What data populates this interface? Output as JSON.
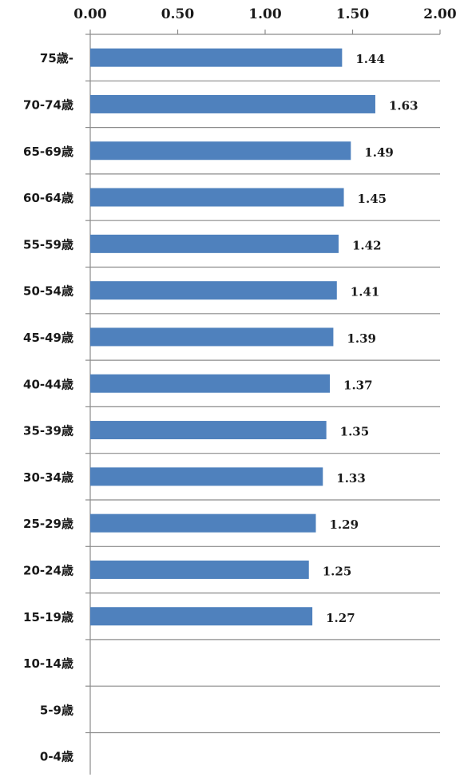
{
  "chart_data": {
    "type": "bar",
    "orientation": "horizontal",
    "categories": [
      "75歳-",
      "70-74歳",
      "65-69歳",
      "60-64歳",
      "55-59歳",
      "50-54歳",
      "45-49歳",
      "40-44歳",
      "35-39歳",
      "30-34歳",
      "25-29歳",
      "20-24歳",
      "15-19歳",
      "10-14歳",
      "5-9歳",
      "0-4歳"
    ],
    "values": [
      1.44,
      1.63,
      1.49,
      1.45,
      1.42,
      1.41,
      1.39,
      1.37,
      1.35,
      1.33,
      1.29,
      1.25,
      1.27,
      null,
      null,
      null
    ],
    "value_labels": [
      "1.44",
      "1.63",
      "1.49",
      "1.45",
      "1.42",
      "1.41",
      "1.39",
      "1.37",
      "1.35",
      "1.33",
      "1.29",
      "1.25",
      "1.27",
      "",
      "",
      ""
    ],
    "x_ticks": [
      "0.00",
      "0.50",
      "1.00",
      "1.50",
      "2.00"
    ],
    "xlim": [
      0,
      2
    ],
    "axis_position": "top",
    "grid": "horizontal-lines-between-categories",
    "legend": "none",
    "bar_color": "#4f81bd",
    "grid_color": "#8c8c8c"
  }
}
